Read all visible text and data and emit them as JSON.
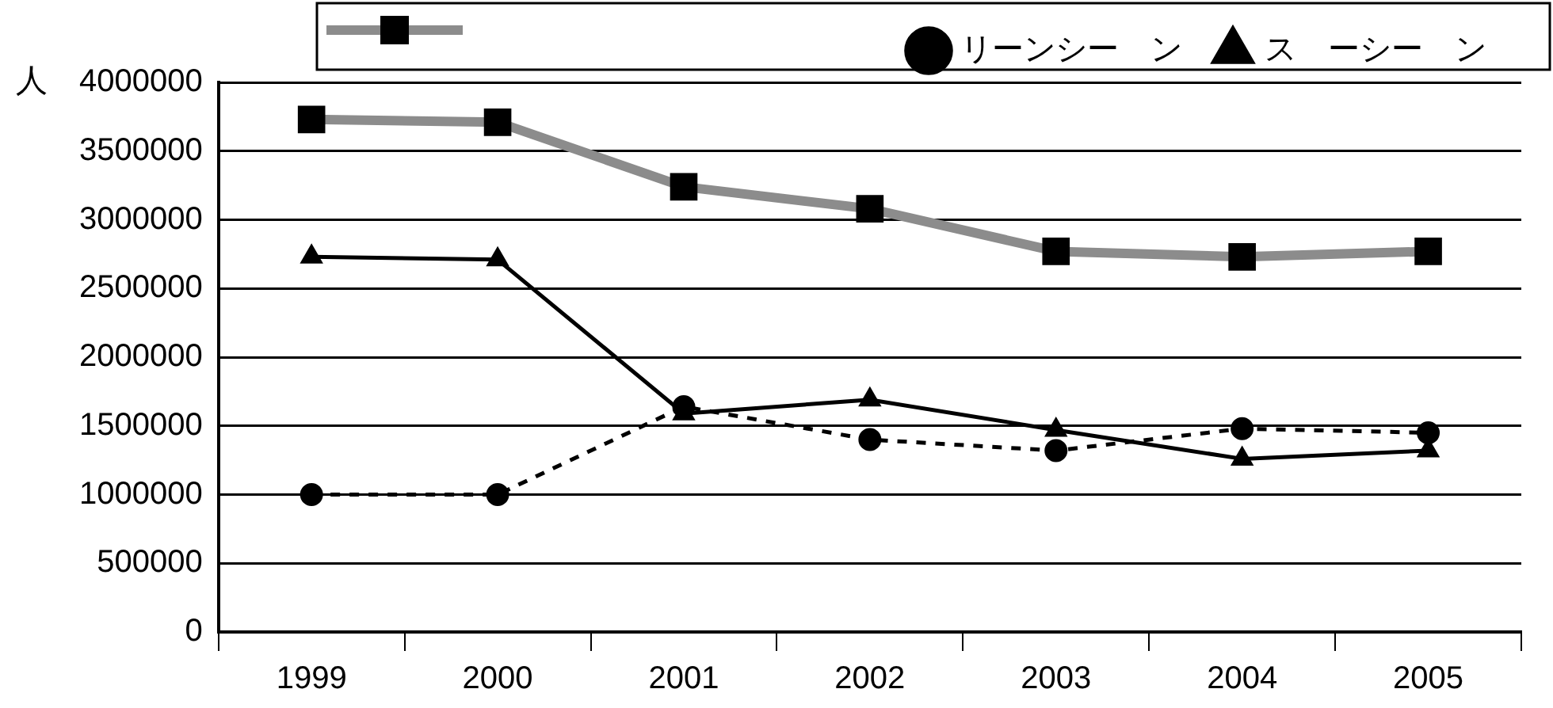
{
  "chart_data": {
    "type": "line",
    "categories": [
      "1999",
      "2000",
      "2001",
      "2002",
      "2003",
      "2004",
      "2005"
    ],
    "ylabel": "人",
    "series": [
      {
        "color": "#8c8c8c",
        "marker": "square",
        "line_style": "solid",
        "values": [
          3730000,
          3710000,
          3240000,
          3080000,
          2770000,
          2730000,
          2770000
        ]
      },
      {
        "name": "リーンシー　ン",
        "color": "#000000",
        "marker": "circle",
        "line_style": "dashed",
        "values": [
          1000000,
          1000000,
          1640000,
          1400000,
          1320000,
          1480000,
          1450000
        ]
      },
      {
        "name": "ス　ーシー　ン",
        "color": "#000000",
        "marker": "triangle",
        "line_style": "solid",
        "values": [
          2730000,
          2710000,
          1590000,
          1690000,
          1470000,
          1260000,
          1320000
        ]
      }
    ],
    "ylim": [
      0,
      4000000
    ],
    "yticks": [
      0,
      500000,
      1000000,
      1500000,
      2000000,
      2500000,
      3000000,
      3500000,
      4000000
    ],
    "grid": "y",
    "legend": "top"
  }
}
